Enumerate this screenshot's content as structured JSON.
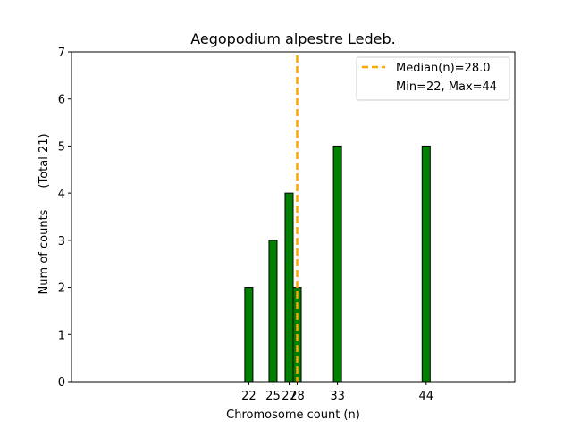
{
  "chart_data": {
    "type": "bar",
    "title": "Aegopodium alpestre Ledeb.",
    "xlabel": "Chromosome count (n)",
    "ylabel": "Num of counts",
    "ylabel_note": "(Total 21)",
    "x": [
      22,
      25,
      27,
      28,
      33,
      44
    ],
    "values": [
      2,
      3,
      4,
      2,
      5,
      5
    ],
    "xticks": [
      22,
      25,
      27,
      28,
      33,
      44
    ],
    "xtick_labels": [
      "22",
      "25",
      "27",
      "28",
      "33",
      "44"
    ],
    "yticks": [
      0,
      1,
      2,
      3,
      4,
      5,
      6,
      7
    ],
    "xlim": [
      0,
      55
    ],
    "ylim": [
      0,
      7
    ],
    "median": 28.0,
    "legend": {
      "placement": "top-right",
      "entries": [
        "Median(n)=28.0",
        "Min=22, Max=44"
      ]
    },
    "colors": {
      "bar": "#008000",
      "bar_edge": "#000000",
      "median_line": "#ffa500"
    },
    "grid": false
  }
}
